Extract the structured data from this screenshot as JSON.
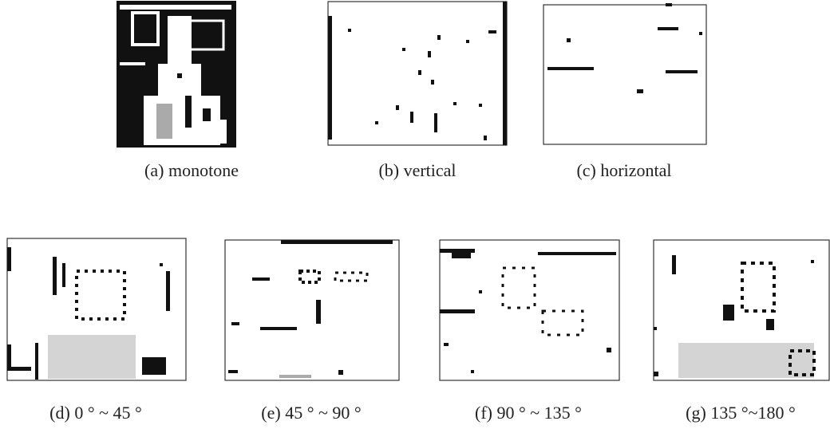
{
  "panels": [
    {
      "caption": "(a) monotone"
    },
    {
      "caption": "(b) vertical"
    },
    {
      "caption": "(c) horizontal"
    },
    {
      "caption": "(d) 0 ° ~ 45 °"
    },
    {
      "caption": "(e) 45 ° ~ 90 °"
    },
    {
      "caption": "(f) 90 ° ~ 135 °"
    },
    {
      "caption": "(g) 135 °~180 °"
    }
  ]
}
